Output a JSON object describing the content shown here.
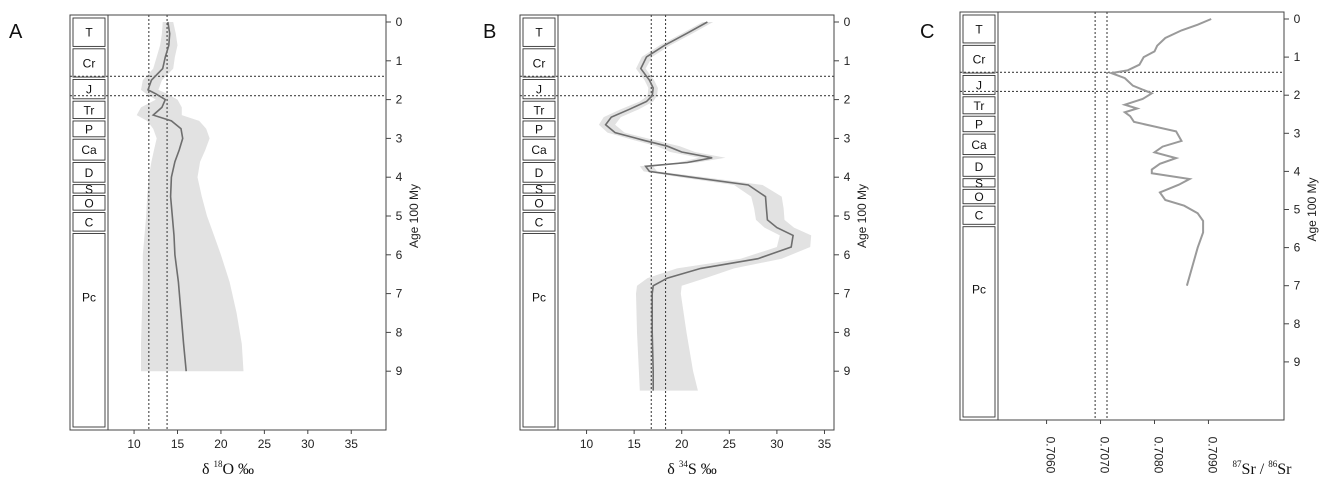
{
  "shared": {
    "periods": [
      {
        "label": "T",
        "start": 0,
        "end": 0.66
      },
      {
        "label": "Cr",
        "start": 0.66,
        "end": 1.45
      },
      {
        "label": "J",
        "start": 1.45,
        "end": 2.01
      },
      {
        "label": "Tr",
        "start": 2.01,
        "end": 2.52
      },
      {
        "label": "P",
        "start": 2.52,
        "end": 2.99
      },
      {
        "label": "Ca",
        "start": 2.99,
        "end": 3.59
      },
      {
        "label": "D",
        "start": 3.59,
        "end": 4.16
      },
      {
        "label": "S",
        "start": 4.16,
        "end": 4.44
      },
      {
        "label": "O",
        "start": 4.44,
        "end": 4.88
      },
      {
        "label": "C",
        "start": 4.88,
        "end": 5.42
      },
      {
        "label": "Pc",
        "start": 5.42,
        "end": 10.0
      }
    ],
    "age_axis": {
      "label": "Age 100 My",
      "ticks": [
        0,
        1,
        2,
        3,
        4,
        5,
        6,
        7,
        8,
        9
      ],
      "range": [
        0,
        10
      ]
    },
    "hlines": [
      1.4,
      1.9
    ],
    "colors": {
      "curve": "#6e6e6e",
      "band": "#e2e2e2",
      "frame": "#444444",
      "refline": "#444444"
    }
  },
  "chart_data": [
    {
      "type": "line",
      "panel_label": "A",
      "xlabel_main": "δ",
      "xlabel_sup": "18",
      "xlabel_tail": "O ‰",
      "xlim": [
        7,
        39
      ],
      "xticks": [
        "10",
        "15",
        "20",
        "25",
        "30",
        "35"
      ],
      "xtick_values": [
        10,
        15,
        20,
        25,
        30,
        35
      ],
      "ylabel": "Age 100 My",
      "vlines": [
        11.7,
        13.8
      ],
      "series": [
        {
          "x": [
            13.9,
            14.1,
            14.0,
            13.6,
            13.3,
            12.0,
            11.6,
            12.5,
            13.6,
            13.2,
            12.2,
            14.3,
            15.4,
            15.6,
            15.2,
            14.7,
            14.3,
            14.2,
            14.4,
            14.6,
            14.7,
            15.1,
            15.4,
            15.7,
            16.0
          ],
          "y": [
            0,
            0.3,
            0.6,
            0.9,
            1.2,
            1.5,
            1.75,
            1.85,
            2.0,
            2.2,
            2.4,
            2.55,
            2.75,
            3.0,
            3.3,
            3.6,
            4.0,
            4.5,
            5.0,
            5.5,
            6.0,
            6.7,
            7.5,
            8.3,
            9.0
          ],
          "band_lo": [
            13.3,
            13.2,
            13.0,
            12.6,
            12.2,
            11.0,
            10.8,
            11.4,
            12.5,
            10.8,
            10.3,
            11.5,
            12.2,
            12.6,
            12.3,
            12.0,
            11.7,
            11.5,
            11.4,
            11.2,
            11.0,
            11.0,
            10.9,
            10.8,
            10.8
          ],
          "band_hi": [
            14.5,
            14.8,
            15.0,
            14.7,
            14.5,
            13.2,
            12.8,
            13.8,
            15.0,
            15.5,
            15.5,
            17.5,
            18.3,
            18.7,
            18.2,
            17.6,
            17.3,
            17.8,
            18.4,
            19.2,
            20.0,
            21.0,
            21.8,
            22.4,
            22.6
          ]
        }
      ]
    },
    {
      "type": "line",
      "panel_label": "B",
      "xlabel_main": "δ",
      "xlabel_sup": "34",
      "xlabel_tail": "S ‰",
      "xlim": [
        7,
        36
      ],
      "xticks": [
        "10",
        "15",
        "20",
        "25",
        "30",
        "35"
      ],
      "xtick_values": [
        10,
        15,
        20,
        25,
        30,
        35
      ],
      "ylabel": "Age 100 My",
      "vlines": [
        16.8,
        18.3
      ],
      "series": [
        {
          "x": [
            22.7,
            20.5,
            18.2,
            16.3,
            15.7,
            16.6,
            17.0,
            16.9,
            16.3,
            14.5,
            12.6,
            12.0,
            13.0,
            16.0,
            18.5,
            20.0,
            23.2,
            20.6,
            16.2,
            16.6,
            21.0,
            27.0,
            28.8,
            28.9,
            29.0,
            30.0,
            31.7,
            31.5,
            28.0,
            22.0,
            18.5,
            17.0,
            16.9,
            16.9,
            17.0,
            17.0
          ],
          "y": [
            0,
            0.3,
            0.6,
            0.9,
            1.2,
            1.5,
            1.7,
            1.9,
            2.05,
            2.25,
            2.45,
            2.65,
            2.85,
            3.05,
            3.2,
            3.35,
            3.5,
            3.62,
            3.72,
            3.85,
            4.0,
            4.2,
            4.5,
            4.8,
            5.1,
            5.3,
            5.5,
            5.8,
            6.1,
            6.35,
            6.6,
            6.8,
            7.0,
            8.0,
            9.0,
            9.5
          ],
          "band_lo": [
            22.2,
            20.0,
            17.7,
            15.8,
            15.2,
            16.1,
            16.5,
            16.4,
            15.6,
            13.6,
            11.8,
            11.3,
            12.2,
            15.0,
            17.4,
            18.8,
            21.8,
            19.6,
            15.6,
            16.0,
            19.8,
            25.5,
            27.3,
            27.6,
            27.8,
            28.7,
            30.3,
            30.0,
            26.2,
            19.5,
            16.4,
            15.3,
            15.2,
            15.3,
            15.5,
            15.6
          ],
          "band_hi": [
            23.3,
            21.1,
            18.8,
            16.9,
            16.2,
            17.1,
            17.5,
            17.4,
            17.0,
            15.5,
            13.6,
            13.0,
            14.0,
            17.2,
            19.8,
            21.4,
            24.6,
            21.6,
            17.0,
            17.4,
            22.4,
            28.5,
            30.5,
            30.7,
            30.8,
            31.8,
            33.6,
            33.5,
            30.5,
            25.5,
            22.5,
            20.0,
            19.9,
            20.5,
            21.2,
            21.7
          ]
        }
      ]
    },
    {
      "type": "line",
      "panel_label": "C",
      "xlabel_main": "87",
      "xlabel_mid": "Sr / ",
      "xlabel_sup2": "86",
      "xlabel_tail": "Sr",
      "xlim": [
        0.7051,
        0.7104
      ],
      "xticks": [
        "0.7060",
        "0.7070",
        "0.7080",
        "0.7090"
      ],
      "xtick_values": [
        0.706,
        0.707,
        0.708,
        0.709
      ],
      "ylabel": "Age 100 My",
      "vlines": [
        0.7069,
        0.70712
      ],
      "series": [
        {
          "x": [
            0.70905,
            0.7088,
            0.7085,
            0.7082,
            0.70805,
            0.708,
            0.7078,
            0.70772,
            0.7075,
            0.7072,
            0.70745,
            0.7076,
            0.70795,
            0.70778,
            0.70745,
            0.70768,
            0.70745,
            0.70755,
            0.70762,
            0.7084,
            0.7085,
            0.70815,
            0.708,
            0.7084,
            0.7081,
            0.70795,
            0.70795,
            0.70865,
            0.70845,
            0.7081,
            0.7082,
            0.70855,
            0.7088,
            0.7089,
            0.7089,
            0.7088,
            0.7087,
            0.7086
          ],
          "y": [
            0,
            0.15,
            0.3,
            0.5,
            0.7,
            0.85,
            1.0,
            1.2,
            1.35,
            1.42,
            1.55,
            1.75,
            1.95,
            2.1,
            2.25,
            2.35,
            2.45,
            2.55,
            2.7,
            2.95,
            3.2,
            3.35,
            3.5,
            3.65,
            3.8,
            3.95,
            4.05,
            4.2,
            4.35,
            4.55,
            4.75,
            4.9,
            5.1,
            5.3,
            5.6,
            6.0,
            6.5,
            7.0
          ]
        }
      ]
    }
  ]
}
